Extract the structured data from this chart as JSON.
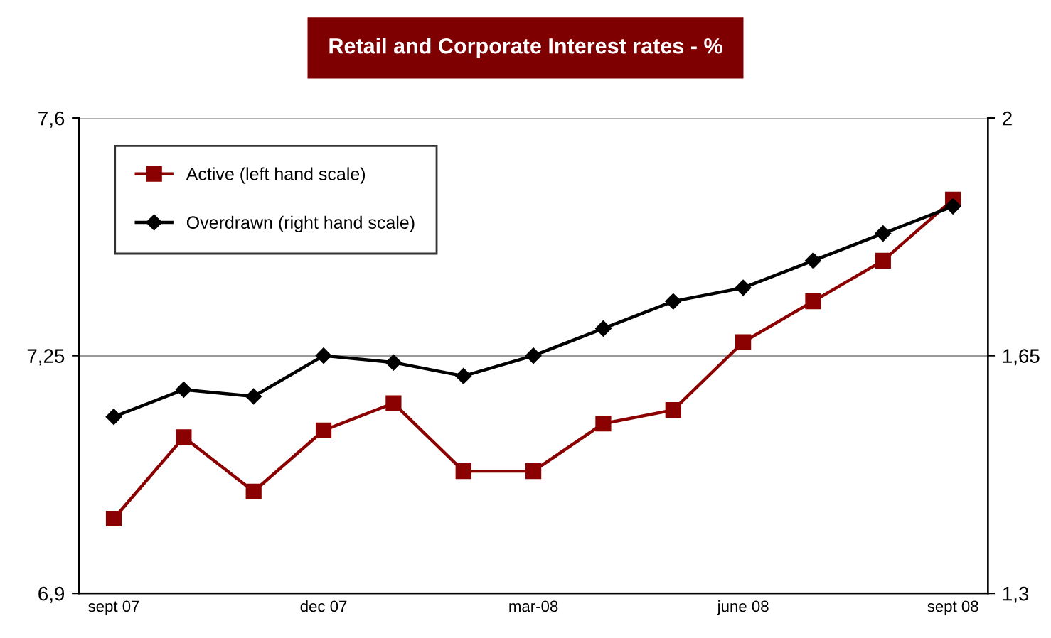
{
  "chart_data": {
    "type": "line",
    "title": "Retail and Corporate Interest rates - %",
    "categories": [
      "sept 07",
      null,
      null,
      "dec 07",
      null,
      null,
      "mar-08",
      null,
      null,
      "june 08",
      null,
      null,
      "sept 08"
    ],
    "series": [
      {
        "name": "Active (left hand scale)",
        "color": "#8b0000",
        "marker": "square",
        "values": [
          7.01,
          7.13,
          7.05,
          7.14,
          7.18,
          7.08,
          7.08,
          7.15,
          7.17,
          7.27,
          7.33,
          7.39,
          7.48
        ]
      },
      {
        "name": "Overdrawn (right hand scale)",
        "color": "#000000",
        "marker": "diamond",
        "axis": "y2",
        "values": [
          1.56,
          1.6,
          1.59,
          1.65,
          1.64,
          1.62,
          1.65,
          1.69,
          1.73,
          1.75,
          1.79,
          1.83,
          1.87
        ]
      }
    ],
    "ylim": [
      6.9,
      7.6
    ],
    "yticks": [
      {
        "value": 6.9,
        "label": "6,9"
      },
      {
        "value": 7.25,
        "label": "7,25"
      },
      {
        "value": 7.6,
        "label": "7,6"
      }
    ],
    "y2lim": [
      1.3,
      2
    ],
    "y2ticks": [
      {
        "value": 1.3,
        "label": "1,3"
      },
      {
        "value": 1.65,
        "label": "1,65"
      },
      {
        "value": 2,
        "label": "2"
      }
    ],
    "grid": "y",
    "legend": "top left",
    "line_style": "solid"
  }
}
